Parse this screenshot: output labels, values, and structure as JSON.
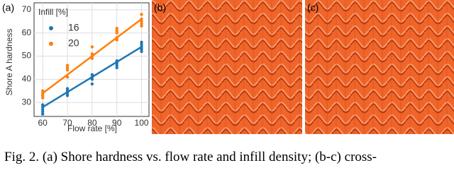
{
  "panels": {
    "a": "(a)",
    "b": "(b)",
    "c": "(c)"
  },
  "chart_data": {
    "type": "scatter",
    "x_label": "Flow rate [%]",
    "y_label": "Shore A hardness",
    "xlim": [
      56.5,
      103
    ],
    "xticks": [
      60,
      70,
      80,
      90,
      100
    ],
    "ylim": [
      24,
      73
    ],
    "yticks": [
      30,
      40,
      50,
      60,
      70
    ],
    "grid": true,
    "legend_title": "Infill [%]",
    "legend": "upper left",
    "series": [
      {
        "name": "16",
        "color": "#1f77b4",
        "x": [
          60,
          60,
          60,
          60,
          60,
          70,
          70,
          70,
          70,
          80,
          80,
          80,
          80,
          90,
          90,
          90,
          90,
          100,
          100,
          100,
          100,
          100
        ],
        "values": [
          25,
          26,
          27,
          28,
          29,
          33,
          34,
          35,
          36,
          38,
          40,
          41,
          42,
          45,
          46,
          47,
          48,
          52,
          53,
          54,
          55,
          56
        ],
        "trend_x": [
          60,
          100
        ],
        "trend": [
          28,
          54
        ]
      },
      {
        "name": "20",
        "color": "#ff7f0e",
        "x": [
          60,
          60,
          60,
          60,
          70,
          70,
          70,
          70,
          80,
          80,
          80,
          80,
          90,
          90,
          90,
          90,
          90,
          100,
          100,
          100,
          100,
          100
        ],
        "values": [
          32,
          33,
          34,
          35,
          41,
          44,
          45,
          46,
          49,
          50,
          51,
          54,
          57,
          58,
          60,
          61,
          62,
          63,
          64,
          65,
          66,
          68
        ],
        "trend_x": [
          60,
          100
        ],
        "trend": [
          34,
          66
        ]
      }
    ]
  },
  "caption": "Fig. 2.  (a) Shore hardness vs. flow rate and infill density; (b-c) cross-"
}
